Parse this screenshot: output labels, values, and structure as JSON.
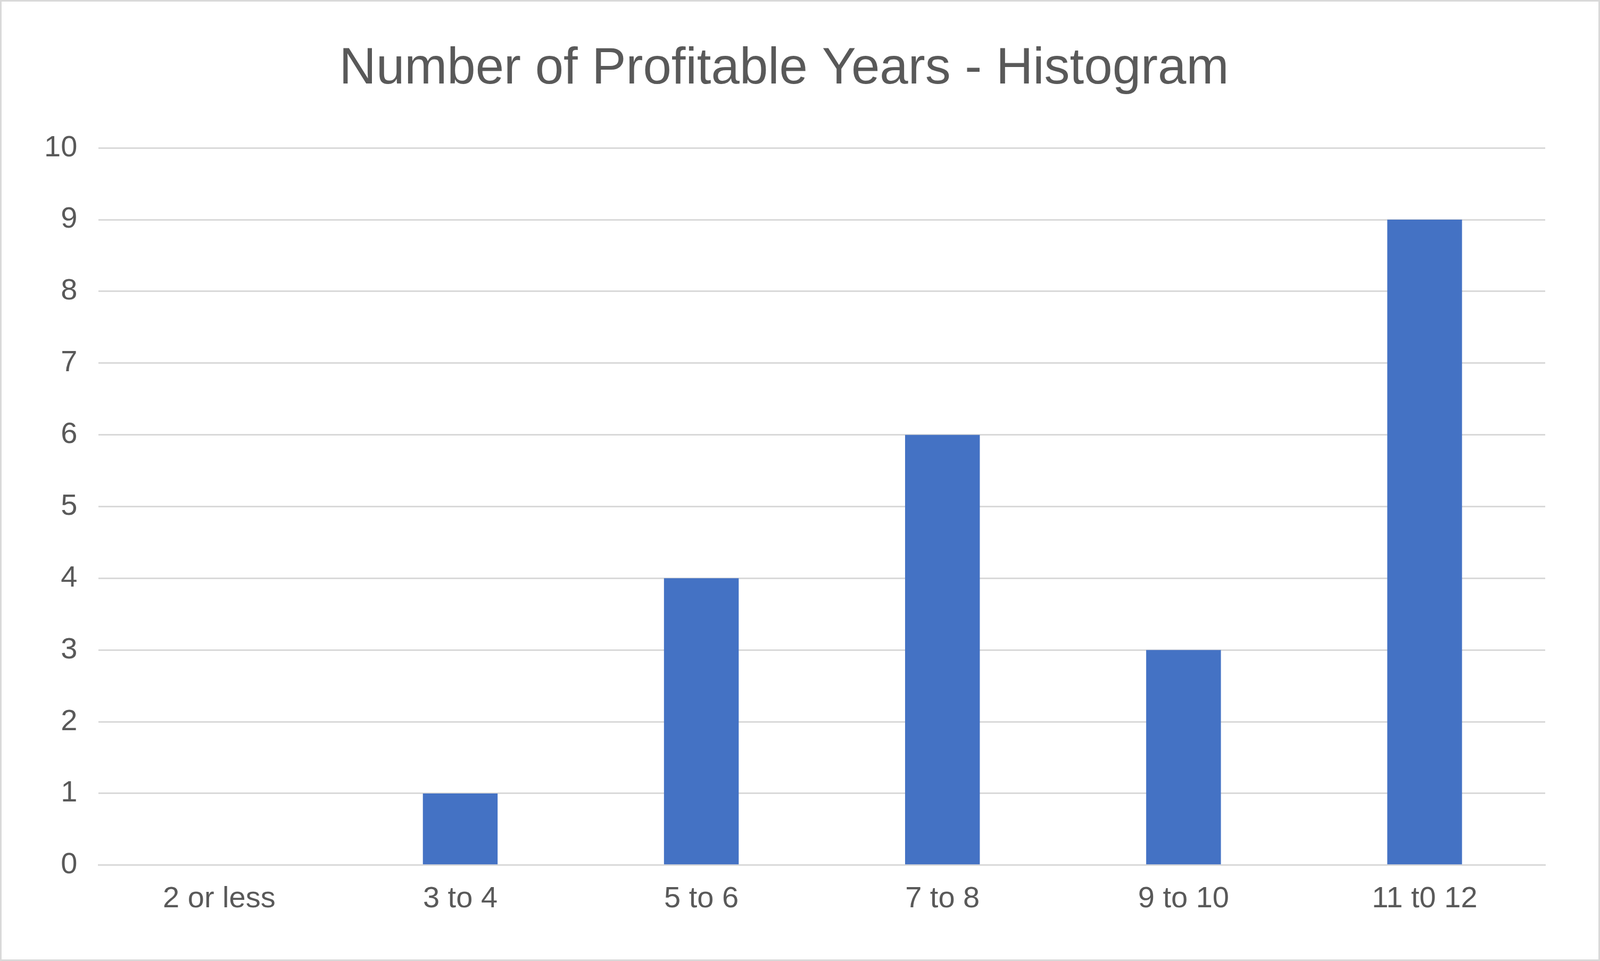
{
  "chart_data": {
    "type": "bar",
    "title": "Number of Profitable Years - Histogram",
    "categories": [
      "2 or less",
      "3 to 4",
      "5 to 6",
      "7 to 8",
      "9 to 10",
      "11 t0 12"
    ],
    "values": [
      0,
      1,
      4,
      6,
      3,
      9
    ],
    "color": "#4472c4",
    "ylim": [
      0,
      10
    ],
    "yticks": [
      0,
      1,
      2,
      3,
      4,
      5,
      6,
      7,
      8,
      9,
      10
    ],
    "grid": true
  }
}
